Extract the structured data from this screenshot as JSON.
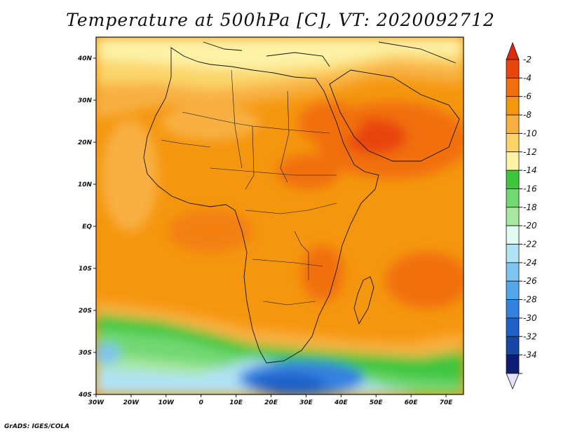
{
  "title": "Temperature at 500hPa [C], VT: 2020092712",
  "credit": "GrADS: IGES/COLA",
  "map": {
    "lon_ticks": [
      {
        "lon": -30,
        "label": "30W"
      },
      {
        "lon": -20,
        "label": "20W"
      },
      {
        "lon": -10,
        "label": "10W"
      },
      {
        "lon": 0,
        "label": "0"
      },
      {
        "lon": 10,
        "label": "10E"
      },
      {
        "lon": 20,
        "label": "20E"
      },
      {
        "lon": 30,
        "label": "30E"
      },
      {
        "lon": 40,
        "label": "40E"
      },
      {
        "lon": 50,
        "label": "50E"
      },
      {
        "lon": 60,
        "label": "60E"
      },
      {
        "lon": 70,
        "label": "70E"
      }
    ],
    "lat_ticks": [
      {
        "lat": 40,
        "label": "40N"
      },
      {
        "lat": 30,
        "label": "30N"
      },
      {
        "lat": 20,
        "label": "20N"
      },
      {
        "lat": 10,
        "label": "10N"
      },
      {
        "lat": 0,
        "label": "EQ"
      },
      {
        "lat": -10,
        "label": "10S"
      },
      {
        "lat": -20,
        "label": "20S"
      },
      {
        "lat": -30,
        "label": "30S"
      },
      {
        "lat": -40,
        "label": "40S"
      }
    ],
    "lon_range": [
      -30,
      75
    ],
    "lat_range": [
      -40,
      45
    ]
  },
  "colorbar": {
    "levels": [
      {
        "label": "-2",
        "color": "#e8450f"
      },
      {
        "label": "-4",
        "color": "#f1700d"
      },
      {
        "label": "-6",
        "color": "#f5960f"
      },
      {
        "label": "-8",
        "color": "#f8b042"
      },
      {
        "label": "-10",
        "color": "#fbd569"
      },
      {
        "label": "-12",
        "color": "#fdf2a6"
      },
      {
        "label": "-14",
        "color": "#3fc63f"
      },
      {
        "label": "-16",
        "color": "#72d872"
      },
      {
        "label": "-18",
        "color": "#a8e8a0"
      },
      {
        "label": "-20",
        "color": "#e2faf4"
      },
      {
        "label": "-22",
        "color": "#b1e2f5"
      },
      {
        "label": "-24",
        "color": "#7fc3f0"
      },
      {
        "label": "-26",
        "color": "#54a6ea"
      },
      {
        "label": "-28",
        "color": "#3581e0"
      },
      {
        "label": "-30",
        "color": "#1e60c8"
      },
      {
        "label": "-32",
        "color": "#1846a4"
      },
      {
        "label": "-34",
        "color": "#0f1c74"
      }
    ],
    "top_color": "#dd2a0d",
    "bottom_color": "#e6e0f8"
  }
}
